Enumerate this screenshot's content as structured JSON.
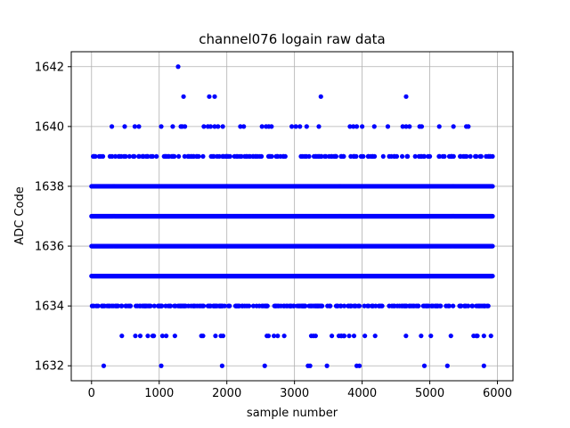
{
  "chart_data": {
    "type": "scatter",
    "title": "channel076 logain raw data",
    "xlabel": "sample number",
    "ylabel": "ADC Code",
    "xlim": [
      -300,
      6230
    ],
    "ylim": [
      1631.5,
      1642.5
    ],
    "xticks": [
      0,
      1000,
      2000,
      3000,
      4000,
      5000,
      6000
    ],
    "yticks": [
      1632,
      1634,
      1636,
      1638,
      1640,
      1642
    ],
    "grid": true,
    "marker_color": "#0000ff",
    "n_samples": 5930,
    "dense_levels": [
      1635,
      1636,
      1637,
      1638
    ],
    "level_density": {
      "1633": 0.05,
      "1634": 0.28,
      "1639": 0.22
    },
    "sparse_points": {
      "1632": [
        180,
        1030,
        1930,
        2560,
        3200,
        3230,
        3480,
        3920,
        3960,
        4920,
        5260,
        5800
      ],
      "1640": [
        300,
        490,
        640,
        700,
        1030,
        1200,
        1320,
        1340,
        1380,
        1660,
        1720,
        1760,
        1820,
        1870,
        1940,
        2200,
        2250,
        2520,
        2580,
        2620,
        2660,
        2960,
        3020,
        3080,
        3180,
        3360,
        3820,
        3870,
        3920,
        4000,
        4180,
        4380,
        4600,
        4650,
        4700,
        4850,
        4880,
        5140,
        5350,
        5540,
        5570
      ],
      "1641": [
        1360,
        1740,
        1820,
        3390,
        4650
      ],
      "1642": [
        1280
      ]
    }
  }
}
